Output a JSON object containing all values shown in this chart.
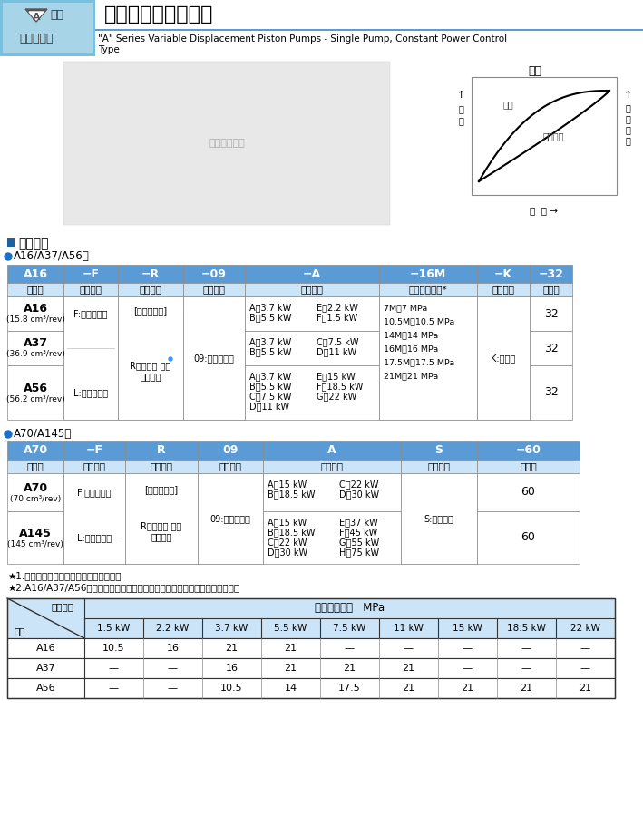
{
  "title_cn": "单泵、恒功率控制型",
  "title_en": "\"A\" Series Variable Displacement Piston Pumps - Single Pump, Constant Power Control\nType",
  "bg_color": "#ffffff",
  "light_blue": "#cce4f7",
  "header_blue": "#5b9bd5",
  "dark_border": "#333333",
  "table1_header_row": [
    "A16",
    "−F",
    "−R",
    "−09",
    "−A",
    "−16M",
    "−K",
    "−32"
  ],
  "table1_subheader": [
    "系列号",
    "安装型式",
    "旋转方向",
    "控制型式",
    "功率特性",
    "指定控制压力*",
    "轴伸形状",
    "设计号"
  ],
  "table2_header_row": [
    "A70",
    "−F",
    "R",
    "09",
    "A",
    "S",
    "−60"
  ],
  "table2_subheader": [
    "系列号",
    "安装型式",
    "旋转方向",
    "控制型式",
    "功率特性",
    "接口方向",
    "设计号"
  ],
  "note1": "⋆1.可提供逆时针型，详情请和我们联系。",
  "note2": "⋆2.A16/A37/A56型的控制压力要指定不高于下表功率特性的最高工作压力值。",
  "pressure_table_header1": "功率特性",
  "pressure_table_header2": "最高工作压力   MPa",
  "pressure_cols": [
    "1.5 kW",
    "2.2 kW",
    "3.7 kW",
    "5.5 kW",
    "7.5 kW",
    "11 kW",
    "15 kW",
    "18.5 kW",
    "22 kW"
  ],
  "pressure_rows": [
    [
      "A16",
      "10.5",
      "16",
      "21",
      "21",
      "—",
      "—",
      "—",
      "—",
      "—"
    ],
    [
      "A37",
      "—",
      "—",
      "16",
      "21",
      "21",
      "21",
      "—",
      "—",
      "—"
    ],
    [
      "A56",
      "—",
      "—",
      "10.5",
      "14",
      "17.5",
      "21",
      "21",
      "21",
      "21"
    ]
  ],
  "section_title": "■ 型号说明",
  "label_a16a37a56": "●a16/A37/A56型",
  "label_a70a145": "●A70/A145型",
  "char_title": "特性"
}
